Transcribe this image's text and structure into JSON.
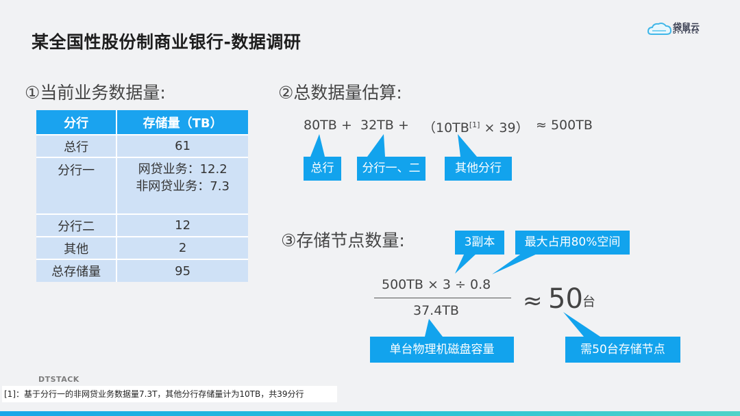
{
  "title": "某全国性股份制商业银行-数据调研",
  "logo": {
    "text": "袋鼠云",
    "sub": "DTSTACK"
  },
  "section1": {
    "heading": "①当前业务数据量:",
    "table": {
      "headers": [
        "分行",
        "存储量（TB）"
      ],
      "rows": [
        {
          "branch": "总行",
          "value": "61"
        },
        {
          "branch": "分行一",
          "lines": [
            "网贷业务：12.2",
            "非网贷业务：7.3"
          ]
        },
        {
          "branch": "分行二",
          "value": "12"
        },
        {
          "branch": "其他",
          "value": "2"
        },
        {
          "branch": "总存储量",
          "value": "95"
        }
      ]
    }
  },
  "section2": {
    "heading": "②总数据量估算:",
    "formula": {
      "t1": "80TB",
      "plus1": "+",
      "t2": "32TB",
      "plus2": "+",
      "t3_open": "（10TB",
      "t3_ref": "[1]",
      "t3_rest": " × 39）",
      "result": "≈ 500TB"
    },
    "callouts": [
      "总行",
      "分行一、二",
      "其他分行"
    ]
  },
  "section3": {
    "heading": "③存储节点数量:",
    "numerator": "500TB × 3 ÷ 0.8",
    "denominator": "37.4TB",
    "approx": "≈",
    "result": "50",
    "unit": "台",
    "callouts": {
      "replicas": "3副本",
      "max_usage": "最大占用80%空间",
      "disk": "单台物理机磁盘容量",
      "nodes": "需50台存储节点"
    }
  },
  "footer": {
    "brand": "DTSTACK",
    "footnote": "[1]：基于分行一的非网贷业务数据量7.3T，其他分行存储量计为10TB，共39分行"
  },
  "colors": {
    "accent": "#12a3ed",
    "table_header": "#1aa3ef",
    "table_cell": "#cfe1f6"
  }
}
